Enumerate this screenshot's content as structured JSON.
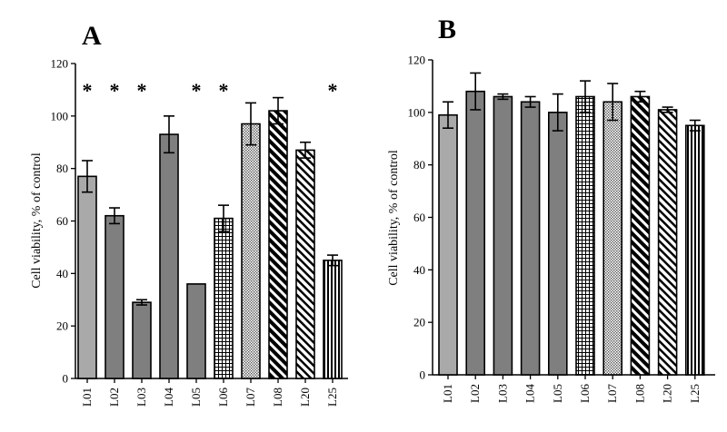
{
  "chart_data": [
    {
      "type": "bar",
      "panel": "A",
      "ylabel": "Cell viability, % of control",
      "ylim": [
        0,
        120
      ],
      "yticks": [
        0,
        20,
        40,
        60,
        80,
        100,
        120
      ],
      "categories": [
        "L01",
        "L02",
        "L03",
        "L04",
        "L05",
        "L06",
        "L07",
        "L08",
        "L20",
        "L25"
      ],
      "values": [
        77,
        62,
        29,
        93,
        36,
        61,
        97,
        102,
        87,
        45
      ],
      "errors": [
        6,
        3,
        1,
        7,
        0,
        5,
        8,
        5,
        3,
        2
      ],
      "significance": [
        "*",
        "*",
        "*",
        "",
        "*",
        "*",
        "",
        "",
        "",
        "*"
      ],
      "fills": [
        "light-gray",
        "gray",
        "gray",
        "gray",
        "gray",
        "grid",
        "dots",
        "diag-wide",
        "diag-narrow",
        "vertical"
      ],
      "grid": false
    },
    {
      "type": "bar",
      "panel": "B",
      "ylabel": "Cell viability, % of control",
      "ylim": [
        0,
        120
      ],
      "yticks": [
        0,
        20,
        40,
        60,
        80,
        100,
        120
      ],
      "categories": [
        "L01",
        "L02",
        "L03",
        "L04",
        "L05",
        "L06",
        "L07",
        "L08",
        "L20",
        "L25"
      ],
      "values": [
        99,
        108,
        106,
        104,
        100,
        106,
        104,
        106,
        101,
        95
      ],
      "errors": [
        5,
        7,
        1,
        2,
        7,
        6,
        7,
        2,
        1,
        2
      ],
      "significance": [
        "",
        "",
        "",
        "",
        "",
        "",
        "",
        "",
        "",
        ""
      ],
      "fills": [
        "light-gray",
        "gray",
        "gray",
        "gray",
        "gray",
        "grid",
        "dots",
        "diag-wide",
        "diag-narrow",
        "vertical"
      ],
      "grid": false
    }
  ],
  "colors": {
    "light_gray": "#a9a9a9",
    "gray": "#7f7f7f",
    "ink": "#000000"
  }
}
